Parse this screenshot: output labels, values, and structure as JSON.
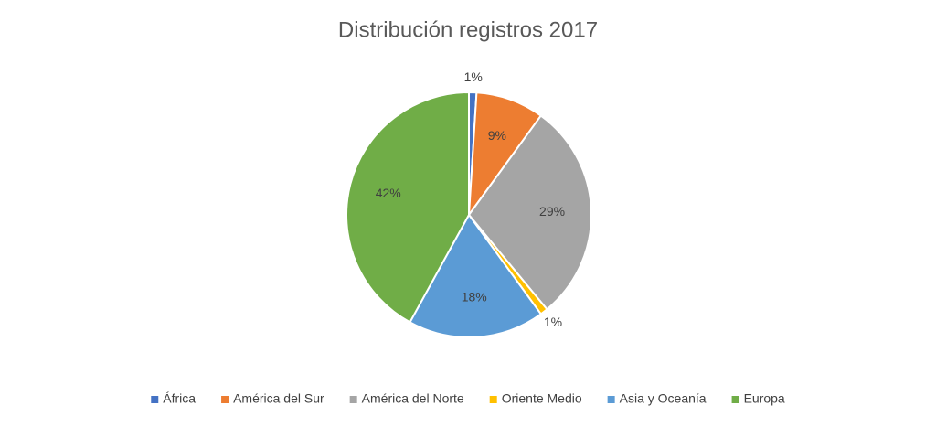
{
  "chart_data": {
    "type": "pie",
    "title": "Distribución registros 2017",
    "categories": [
      "África",
      "América del Sur",
      "América del Norte",
      "Oriente Medio",
      "Asia y Oceanía",
      "Europa"
    ],
    "values": [
      1,
      9,
      29,
      1,
      18,
      42
    ],
    "value_labels": [
      "1%",
      "9%",
      "29%",
      "1%",
      "18%",
      "42%"
    ],
    "colors": [
      "#4472c4",
      "#ed7d31",
      "#a5a5a5",
      "#ffc000",
      "#5b9bd5",
      "#70ad47"
    ],
    "legend": "bottom"
  }
}
